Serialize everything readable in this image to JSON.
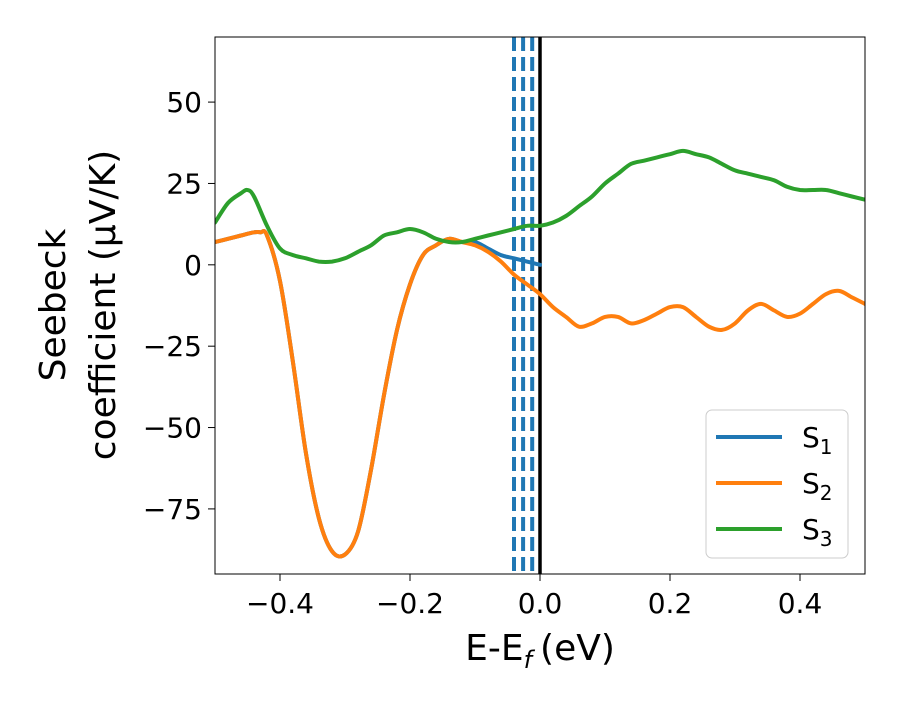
{
  "chart_data": {
    "type": "line",
    "title": "",
    "xlabel": "E-E",
    "xlabel_sub": "f",
    "xlabel_unit": "(eV)",
    "ylabel_line1": "Seebeck",
    "ylabel_line2": "coefficient  (μV/K)",
    "xlim": [
      -0.5,
      0.5
    ],
    "ylim": [
      -95,
      70
    ],
    "xticks": [
      -0.4,
      -0.2,
      0.0,
      0.2,
      0.4
    ],
    "xtick_labels": [
      "−0.4",
      "−0.2",
      "0.0",
      "0.2",
      "0.4"
    ],
    "yticks": [
      50,
      25,
      0,
      -25,
      -50,
      -75
    ],
    "ytick_labels": [
      "50",
      "25",
      "0",
      "−25",
      "−50",
      "−75"
    ],
    "grid": false,
    "legend_position": "lower-right",
    "series": [
      {
        "name": "S",
        "name_sub": "1",
        "color": "#1f77b4",
        "x": [
          -0.5,
          -0.48,
          -0.46,
          -0.44,
          -0.43,
          -0.42,
          -0.4,
          -0.38,
          -0.36,
          -0.34,
          -0.32,
          -0.3,
          -0.28,
          -0.26,
          -0.24,
          -0.22,
          -0.2,
          -0.18,
          -0.16,
          -0.14,
          -0.12,
          -0.1,
          -0.08,
          -0.06,
          -0.04,
          -0.02,
          0.0
        ],
        "y": [
          7,
          8,
          9,
          10,
          10,
          9,
          -5,
          -30,
          -58,
          -78,
          -88,
          -89,
          -82,
          -63,
          -40,
          -20,
          -6,
          3,
          6,
          8,
          7,
          7,
          5,
          3,
          2,
          1,
          0
        ]
      },
      {
        "name": "S",
        "name_sub": "2",
        "color": "#ff7f0e",
        "x": [
          -0.5,
          -0.48,
          -0.46,
          -0.44,
          -0.43,
          -0.42,
          -0.4,
          -0.38,
          -0.36,
          -0.34,
          -0.32,
          -0.3,
          -0.28,
          -0.26,
          -0.24,
          -0.22,
          -0.2,
          -0.18,
          -0.16,
          -0.14,
          -0.12,
          -0.1,
          -0.08,
          -0.06,
          -0.04,
          -0.02,
          0.0,
          0.02,
          0.04,
          0.06,
          0.08,
          0.1,
          0.12,
          0.14,
          0.16,
          0.18,
          0.2,
          0.22,
          0.24,
          0.26,
          0.28,
          0.3,
          0.32,
          0.34,
          0.36,
          0.38,
          0.4,
          0.42,
          0.44,
          0.46,
          0.48,
          0.5
        ],
        "y": [
          7,
          8,
          9,
          10,
          10,
          9,
          -5,
          -30,
          -58,
          -78,
          -88,
          -89,
          -82,
          -63,
          -40,
          -20,
          -6,
          3,
          6,
          8,
          7,
          6,
          4,
          1,
          -3,
          -6,
          -9,
          -13,
          -16,
          -19,
          -18,
          -16,
          -16,
          -18,
          -17,
          -15,
          -13,
          -13,
          -16,
          -19,
          -20,
          -18,
          -14,
          -12,
          -14,
          -16,
          -15,
          -12,
          -9,
          -8,
          -10,
          -12
        ]
      },
      {
        "name": "S",
        "name_sub": "3",
        "color": "#2ca02c",
        "x": [
          -0.5,
          -0.48,
          -0.46,
          -0.45,
          -0.44,
          -0.42,
          -0.4,
          -0.38,
          -0.36,
          -0.34,
          -0.32,
          -0.3,
          -0.28,
          -0.26,
          -0.24,
          -0.22,
          -0.2,
          -0.18,
          -0.16,
          -0.14,
          -0.12,
          -0.1,
          -0.08,
          -0.06,
          -0.04,
          -0.02,
          0.0,
          0.02,
          0.04,
          0.06,
          0.08,
          0.1,
          0.12,
          0.14,
          0.16,
          0.18,
          0.2,
          0.22,
          0.24,
          0.26,
          0.28,
          0.3,
          0.32,
          0.34,
          0.36,
          0.38,
          0.4,
          0.42,
          0.44,
          0.46,
          0.48,
          0.5
        ],
        "y": [
          13,
          19,
          22,
          23,
          21,
          12,
          5,
          3,
          2,
          1,
          1,
          2,
          4,
          6,
          9,
          10,
          11,
          10,
          8,
          7,
          7,
          8,
          9,
          10,
          11,
          12,
          12,
          13,
          15,
          18,
          21,
          25,
          28,
          31,
          32,
          33,
          34,
          35,
          34,
          33,
          31,
          29,
          28,
          27,
          26,
          24,
          23,
          23,
          23,
          22,
          21,
          20
        ]
      }
    ],
    "vlines": [
      {
        "x": -0.04,
        "style": "dashed",
        "color": "#1f77b4"
      },
      {
        "x": -0.026,
        "style": "dashed",
        "color": "#1f77b4"
      },
      {
        "x": -0.012,
        "style": "dashed",
        "color": "#1f77b4"
      },
      {
        "x": 0.0,
        "style": "solid",
        "color": "#000000"
      }
    ]
  }
}
